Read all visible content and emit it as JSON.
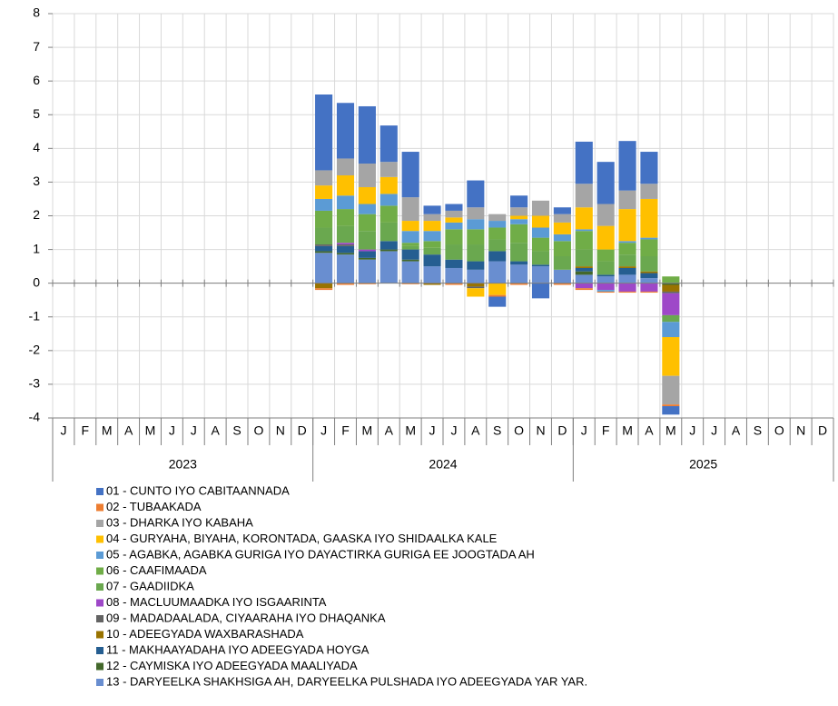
{
  "chart_data": {
    "type": "stacked_bar",
    "categories": [
      "J",
      "F",
      "M",
      "A",
      "M",
      "J",
      "J",
      "A",
      "S",
      "O",
      "N",
      "D",
      "J",
      "F",
      "M",
      "A",
      "M",
      "J",
      "J",
      "A",
      "S",
      "O",
      "N",
      "D",
      "J",
      "F",
      "M",
      "A",
      "M",
      "J",
      "J",
      "A",
      "S",
      "O",
      "N",
      "D"
    ],
    "year_labels": [
      "2023",
      "2024",
      "2025"
    ],
    "ylim": [
      -4,
      8
    ],
    "yticks": [
      -4,
      -3,
      -2,
      -1,
      0,
      1,
      2,
      3,
      4,
      5,
      6,
      7,
      8
    ],
    "grid": true,
    "legend": "bottom",
    "series": [
      {
        "name": "01 - CUNTO IYO CABITAANNADA",
        "color": "#4472c4",
        "values": [
          null,
          null,
          null,
          null,
          null,
          null,
          null,
          null,
          null,
          null,
          null,
          null,
          2.25,
          1.65,
          1.7,
          1.08,
          1.35,
          0.25,
          0.2,
          0.8,
          -0.3,
          0.35,
          -0.45,
          0.2,
          1.25,
          1.25,
          1.47,
          0.95,
          -0.25,
          null,
          null,
          null,
          null,
          null,
          null,
          null
        ]
      },
      {
        "name": "02 - TUBAAKADA",
        "color": "#ed7d31",
        "values": [
          null,
          null,
          null,
          null,
          null,
          null,
          null,
          null,
          null,
          null,
          null,
          null,
          -0.05,
          -0.05,
          -0.03,
          0,
          -0.03,
          0,
          -0.05,
          0,
          -0.05,
          -0.05,
          0,
          -0.05,
          -0.05,
          -0.03,
          -0.03,
          -0.03,
          -0.05,
          null,
          null,
          null,
          null,
          null,
          null,
          null
        ]
      },
      {
        "name": "03 - DHARKA IYO KABAHA",
        "color": "#a5a5a5",
        "values": [
          null,
          null,
          null,
          null,
          null,
          null,
          null,
          null,
          null,
          null,
          null,
          null,
          0.45,
          0.5,
          0.7,
          0.45,
          0.7,
          0.2,
          0.2,
          0.35,
          0.2,
          0.25,
          0.45,
          0.25,
          0.7,
          0.65,
          0.55,
          0.45,
          -0.85,
          null,
          null,
          null,
          null,
          null,
          null,
          null
        ]
      },
      {
        "name": "04 - GURYAHA, BIYAHA, KORONTADA, GAASKA IYO SHIDAALKA KALE",
        "color": "#ffc000",
        "values": [
          null,
          null,
          null,
          null,
          null,
          null,
          null,
          null,
          null,
          null,
          null,
          null,
          0.4,
          0.6,
          0.5,
          0.5,
          0.3,
          0.3,
          0.15,
          -0.25,
          -0.35,
          0.1,
          0.35,
          0.35,
          0.65,
          0.7,
          0.95,
          1.15,
          -1.15,
          null,
          null,
          null,
          null,
          null,
          null,
          null
        ]
      },
      {
        "name": "05 - AGABKA, AGABKA GURIGA IYO DAYACTIRKA GURIGA EE JOOGTADA AH",
        "color": "#5b9bd5",
        "values": [
          null,
          null,
          null,
          null,
          null,
          null,
          null,
          null,
          null,
          null,
          null,
          null,
          0.35,
          0.4,
          0.3,
          0.35,
          0.35,
          0.3,
          0.2,
          0.3,
          0.2,
          0.15,
          0.3,
          0.2,
          0.05,
          -0.05,
          0.05,
          0.05,
          -0.45,
          null,
          null,
          null,
          null,
          null,
          null,
          null
        ]
      },
      {
        "name": "06 - CAAFIMAADA",
        "color": "#70ad47",
        "values": [
          null,
          null,
          null,
          null,
          null,
          null,
          null,
          null,
          null,
          null,
          null,
          null,
          0.5,
          0.5,
          0.5,
          0.5,
          0.1,
          0.2,
          0.45,
          0.45,
          0.35,
          0.55,
          0.4,
          0.45,
          0.55,
          0.35,
          0.35,
          0.5,
          0.2,
          null,
          null,
          null,
          null,
          null,
          null,
          null
        ]
      },
      {
        "name": "07 - GAADIIDKA",
        "color": "#6aa84f",
        "values": [
          null,
          null,
          null,
          null,
          null,
          null,
          null,
          null,
          null,
          null,
          null,
          null,
          0.5,
          0.5,
          0.55,
          0.55,
          0.1,
          0.2,
          0.45,
          0.5,
          0.35,
          0.55,
          0.4,
          0.4,
          0.5,
          0.4,
          0.35,
          0.45,
          -0.2,
          null,
          null,
          null,
          null,
          null,
          null,
          null
        ]
      },
      {
        "name": "08 - MACLUUMAADKA IYO ISGAARINTA",
        "color": "#9e48c8",
        "values": [
          null,
          null,
          null,
          null,
          null,
          null,
          null,
          null,
          null,
          null,
          null,
          null,
          0,
          0.05,
          0.05,
          0,
          0,
          0,
          0,
          0,
          0,
          0,
          0,
          0,
          -0.15,
          -0.2,
          -0.25,
          -0.25,
          -0.65,
          null,
          null,
          null,
          null,
          null,
          null,
          null
        ]
      },
      {
        "name": "09 - MADADAALADA, CIYAARAHA IYO DHAQANKA",
        "color": "#636363",
        "values": [
          null,
          null,
          null,
          null,
          null,
          null,
          null,
          null,
          null,
          null,
          null,
          null,
          0.05,
          0.05,
          0,
          0,
          0,
          0,
          0,
          -0.05,
          0,
          0,
          0,
          0,
          0,
          0,
          0,
          0,
          -0.05,
          null,
          null,
          null,
          null,
          null,
          null,
          null
        ]
      },
      {
        "name": "10 - ADEEGYADA WAXBARASHADA",
        "color": "#997300",
        "values": [
          null,
          null,
          null,
          null,
          null,
          null,
          null,
          null,
          null,
          null,
          null,
          null,
          -0.15,
          0,
          0,
          0,
          0,
          -0.05,
          0,
          -0.1,
          0,
          0,
          0,
          0,
          0.05,
          0,
          0.05,
          0.05,
          -0.2,
          null,
          null,
          null,
          null,
          null,
          null,
          null
        ]
      },
      {
        "name": "11 - MAKHAAYADAHA IYO ADEEGYADA HOYGA",
        "color": "#255e91",
        "values": [
          null,
          null,
          null,
          null,
          null,
          null,
          null,
          null,
          null,
          null,
          null,
          null,
          0.15,
          0.2,
          0.2,
          0.25,
          0.3,
          0.35,
          0.25,
          0.25,
          0.3,
          0.1,
          0.05,
          0,
          0.1,
          0.05,
          0.2,
          0.15,
          0,
          null,
          null,
          null,
          null,
          null,
          null,
          null
        ]
      },
      {
        "name": "12 - CAYMISKA IYO ADEEGYADA MAALIYADA",
        "color": "#43682b",
        "values": [
          null,
          null,
          null,
          null,
          null,
          null,
          null,
          null,
          null,
          null,
          null,
          null,
          0.05,
          0.05,
          0.05,
          0.05,
          0.05,
          0,
          0,
          0,
          0,
          0,
          0,
          0,
          0.1,
          0,
          0,
          0,
          -0.05,
          null,
          null,
          null,
          null,
          null,
          null,
          null
        ]
      },
      {
        "name": "13 - DARYEELKA SHAKHSIGA AH, DARYEELKA PULSHADA IYO ADEEGYADA YAR YAR.",
        "color": "#698ed0",
        "values": [
          null,
          null,
          null,
          null,
          null,
          null,
          null,
          null,
          null,
          null,
          null,
          null,
          0.9,
          0.85,
          0.7,
          0.95,
          0.65,
          0.5,
          0.45,
          0.4,
          0.65,
          0.55,
          0.5,
          0.4,
          0.25,
          0.2,
          0.25,
          0.15,
          0,
          null,
          null,
          null,
          null,
          null,
          null,
          null
        ]
      }
    ]
  }
}
